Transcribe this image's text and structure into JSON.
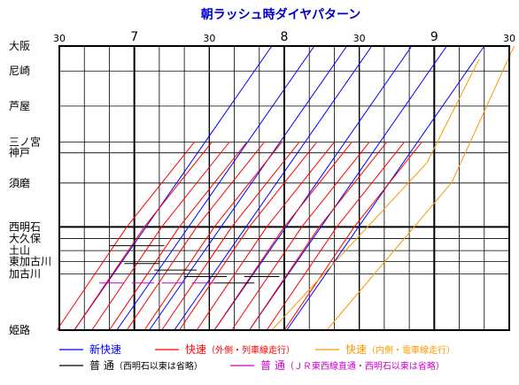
{
  "chart_data": {
    "type": "line",
    "title": "朝ラッシュ時ダイヤパターン",
    "time_axis": {
      "start_minutes": 390,
      "end_minutes": 570,
      "tick_labels": [
        {
          "minutes": 390,
          "label": "30",
          "major": false
        },
        {
          "minutes": 420,
          "label": "7",
          "major": true
        },
        {
          "minutes": 450,
          "label": "30",
          "major": false
        },
        {
          "minutes": 480,
          "label": "8",
          "major": true
        },
        {
          "minutes": 510,
          "label": "30",
          "major": false
        },
        {
          "minutes": 540,
          "label": "9",
          "major": true
        },
        {
          "minutes": 570,
          "label": "30",
          "major": false
        }
      ],
      "minor_gridline_every_min": 10
    },
    "stations": [
      {
        "name": "大阪",
        "km": 0,
        "bold": false
      },
      {
        "name": "尼崎",
        "km": 7.7,
        "bold": false
      },
      {
        "name": "芦屋",
        "km": 18.5,
        "bold": false
      },
      {
        "name": "三ノ宮",
        "km": 29.6,
        "bold": false
      },
      {
        "name": "神戸",
        "km": 32.9,
        "bold": false
      },
      {
        "name": "須磨",
        "km": 42.2,
        "bold": false
      },
      {
        "name": "西明石",
        "km": 55.7,
        "bold": true
      },
      {
        "name": "大久保",
        "km": 59.3,
        "bold": false
      },
      {
        "name": "土山",
        "km": 63.0,
        "bold": false
      },
      {
        "name": "東加古川",
        "km": 66.4,
        "bold": false
      },
      {
        "name": "加古川",
        "km": 70.2,
        "bold": false
      },
      {
        "name": "姫路",
        "km": 87.5,
        "bold": false
      }
    ],
    "series": [
      {
        "name": "新快速",
        "color": "#0000ff",
        "trains": [
          [
            [
              396,
              87.5
            ],
            [
              475,
              0
            ]
          ],
          [
            [
              413,
              87.5
            ],
            [
              492,
              0
            ]
          ],
          [
            [
              426,
              87.5
            ],
            [
              505,
              0
            ]
          ],
          [
            [
              436,
              87.5
            ],
            [
              515,
              0
            ]
          ],
          [
            [
              452,
              87.5
            ],
            [
              531,
              0
            ]
          ],
          [
            [
              466,
              87.5
            ],
            [
              545,
              0
            ]
          ],
          [
            [
              481,
              87.5
            ],
            [
              560,
              0
            ]
          ]
        ]
      },
      {
        "name": "快速",
        "note": "外側・列車線走行",
        "color": "#ff0000",
        "trains": [
          [
            [
              389,
              87.5
            ],
            [
              417,
              55.7
            ],
            [
              444,
              29.6
            ]
          ],
          [
            [
              396,
              87.5
            ],
            [
              424,
              55.7
            ],
            [
              451,
              29.6
            ]
          ],
          [
            [
              403,
              87.5
            ],
            [
              431,
              55.7
            ],
            [
              458,
              29.6
            ]
          ],
          [
            [
              410,
              87.5
            ],
            [
              438,
              55.7
            ],
            [
              465,
              29.6
            ]
          ],
          [
            [
              417,
              87.5
            ],
            [
              445,
              55.7
            ],
            [
              472,
              29.6
            ]
          ],
          [
            [
              424,
              87.5
            ],
            [
              452,
              55.7
            ],
            [
              479,
              29.6
            ]
          ],
          [
            [
              431,
              87.5
            ],
            [
              459,
              55.7
            ],
            [
              486,
              29.6
            ]
          ],
          [
            [
              438,
              87.5
            ],
            [
              466,
              55.7
            ],
            [
              493,
              29.6
            ]
          ],
          [
            [
              445,
              87.5
            ],
            [
              473,
              55.7
            ],
            [
              500,
              29.6
            ]
          ],
          [
            [
              452,
              87.5
            ],
            [
              480,
              55.7
            ],
            [
              507,
              29.6
            ]
          ],
          [
            [
              459,
              87.5
            ],
            [
              487,
              55.7
            ],
            [
              514,
              29.6
            ]
          ],
          [
            [
              466,
              87.5
            ],
            [
              494,
              55.7
            ],
            [
              521,
              29.6
            ]
          ],
          [
            [
              473,
              87.5
            ],
            [
              501,
              55.7
            ],
            [
              528,
              29.6
            ]
          ],
          [
            [
              480,
              87.5
            ],
            [
              508,
              55.7
            ],
            [
              535,
              29.6
            ]
          ]
        ]
      },
      {
        "name": "快速",
        "note": "内側・電車線走行",
        "color": "#ff9900",
        "trains": [
          [
            [
              475,
              87.5
            ],
            [
              537,
              36
            ],
            [
              558,
              4
            ]
          ],
          [
            [
              497,
              87.5
            ],
            [
              547,
              42
            ],
            [
              572,
              0
            ]
          ]
        ]
      },
      {
        "name": "普通",
        "note": "西明石以東は省略",
        "color": "#000000",
        "trains": [
          [
            [
              410,
              61.5
            ],
            [
              432,
              61.5
            ]
          ],
          [
            [
              416,
              67
            ],
            [
              430,
              67
            ]
          ],
          [
            [
              428,
              69
            ],
            [
              445,
              69
            ]
          ],
          [
            [
              440,
              71
            ],
            [
              457,
              71
            ]
          ],
          [
            [
              452,
              73
            ],
            [
              468,
              73
            ]
          ],
          [
            [
              464,
              71
            ],
            [
              478,
              71
            ]
          ]
        ]
      },
      {
        "name": "普通",
        "note": "ＪＲ東西線直通・西明石以東は省略",
        "color": "#cc00cc",
        "trains": [
          [
            [
              406,
              73
            ],
            [
              416,
              73
            ]
          ],
          [
            [
              419,
              73
            ],
            [
              428,
              73
            ]
          ],
          [
            [
              431,
              73
            ],
            [
              440,
              73
            ]
          ],
          [
            [
              443,
              73
            ],
            [
              452,
              73
            ]
          ]
        ]
      }
    ]
  },
  "legend": [
    {
      "name": "新快速",
      "note": "",
      "color": "#0000ff"
    },
    {
      "name": "快速",
      "note": "（外側・列車線走行）",
      "color": "#ff0000"
    },
    {
      "name": "快速",
      "note": "（内側・電車線走行）",
      "color": "#ff9900"
    },
    {
      "name": "普 通",
      "note": "（西明石以東は省略）",
      "color": "#000000"
    },
    {
      "name": "普 通",
      "note": "（ＪＲ東西線直通・西明石以東は省略）",
      "color": "#cc00cc"
    }
  ]
}
